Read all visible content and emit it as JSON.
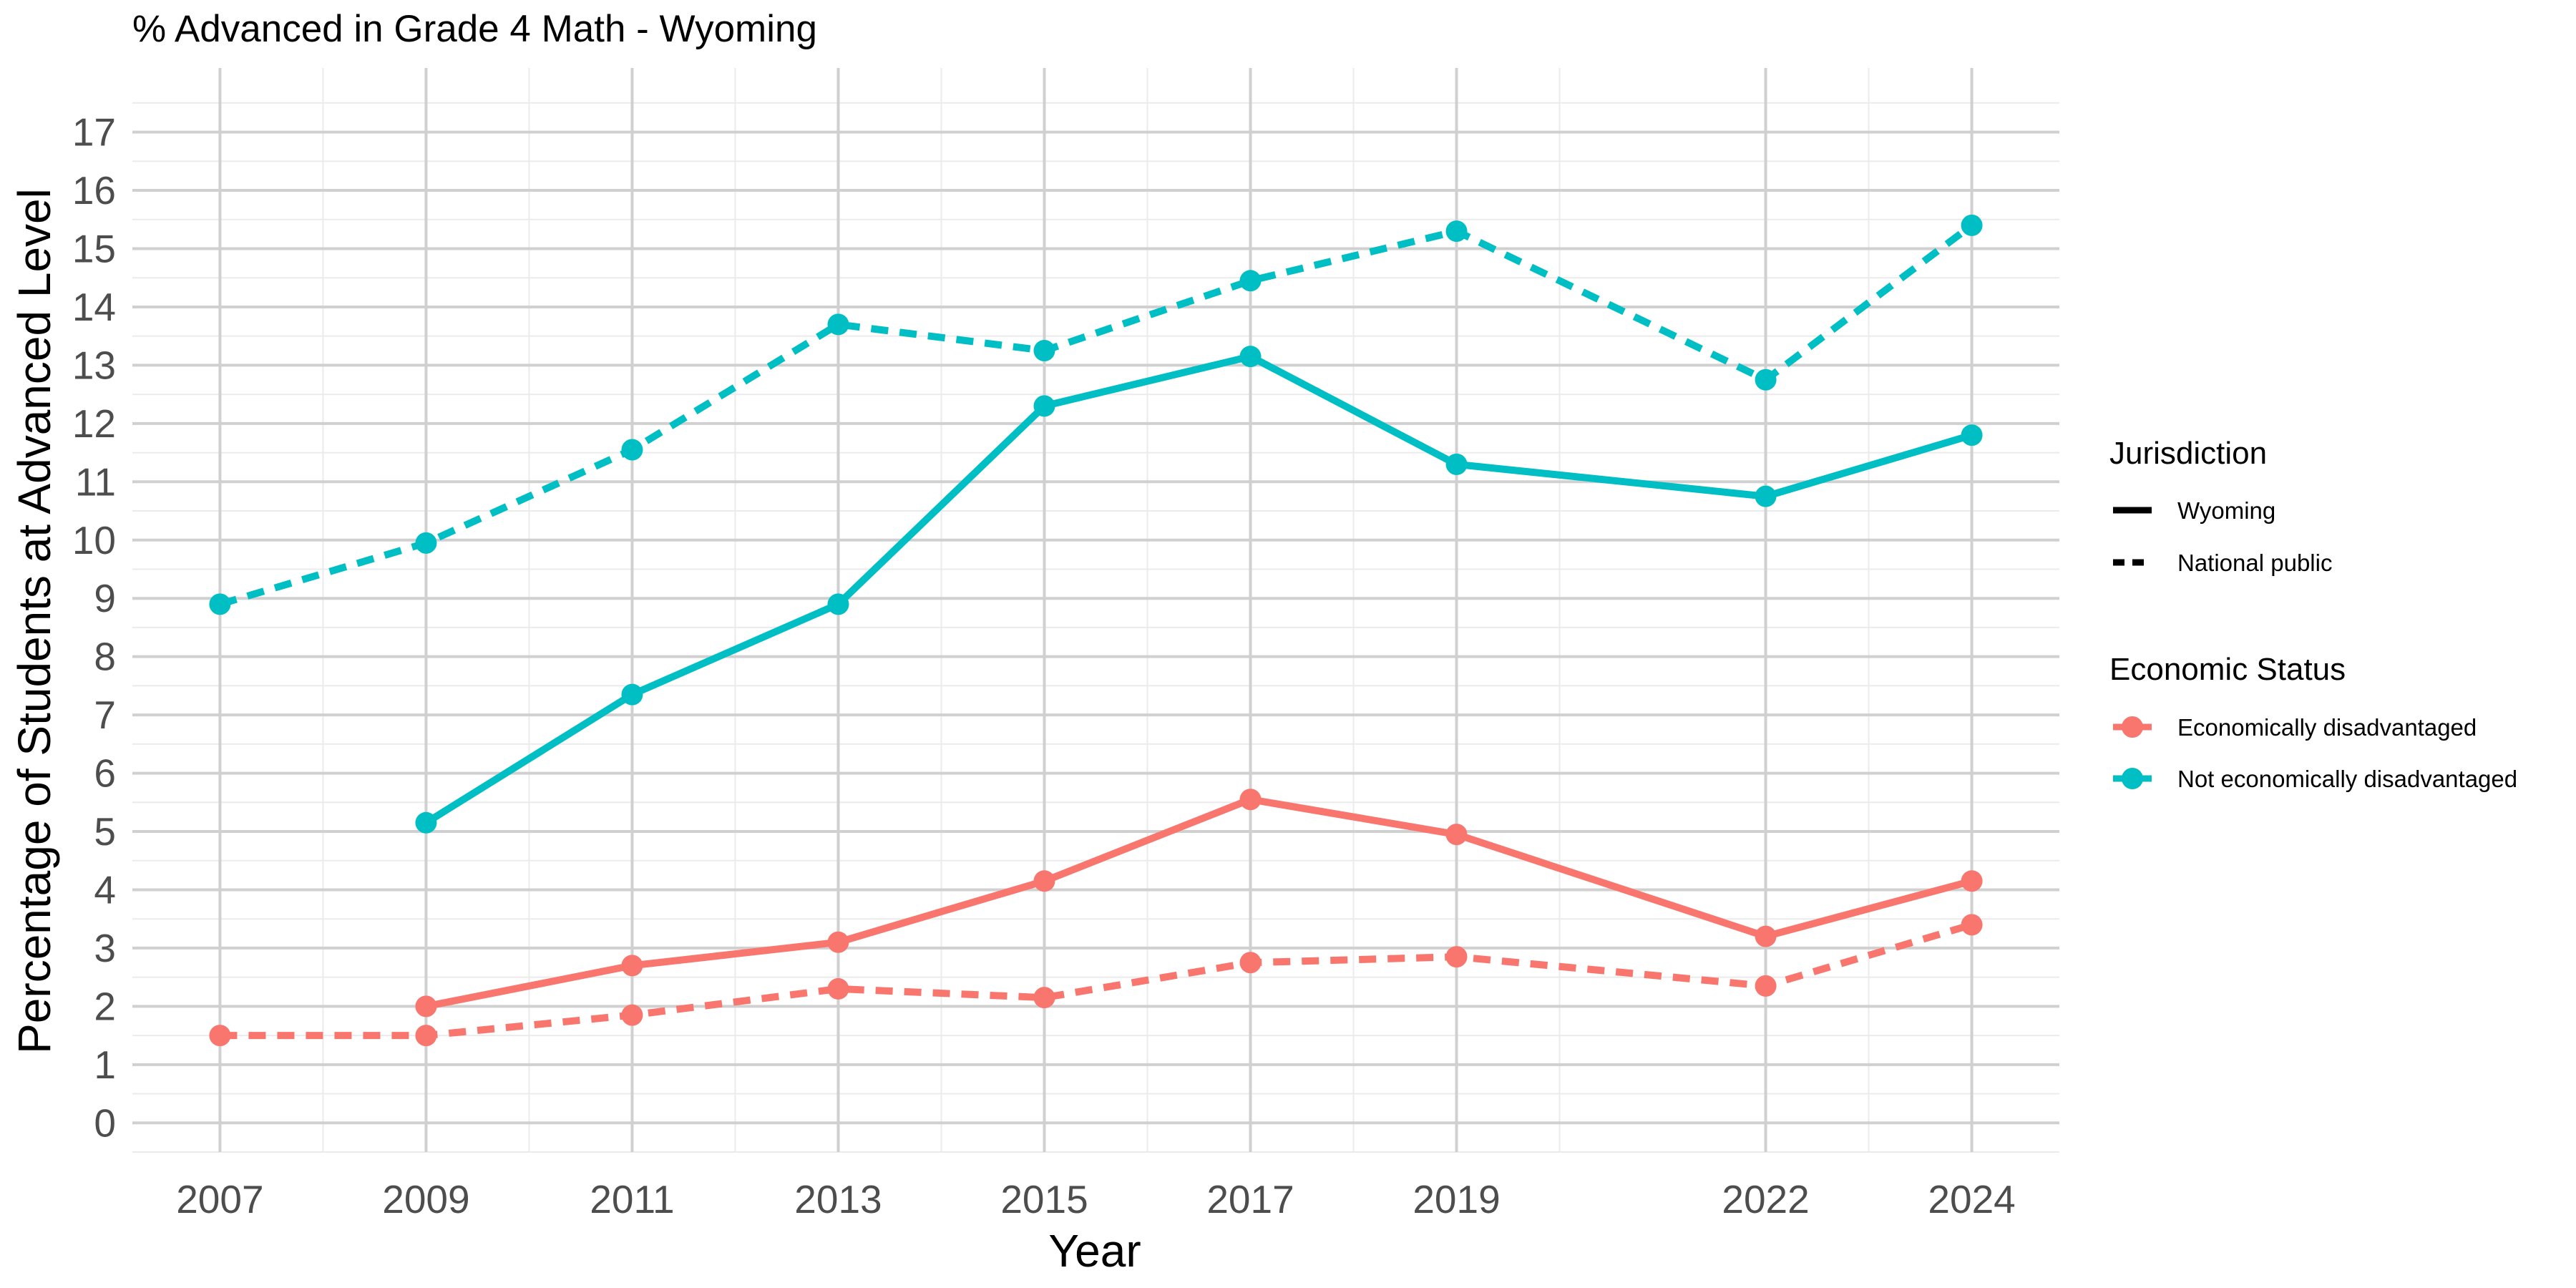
{
  "chart_data": {
    "type": "line",
    "title": "% Advanced in Grade 4 Math - Wyoming",
    "xlabel": "Year",
    "ylabel": "Percentage of Students at Advanced Level",
    "x_ticks": [
      "2007",
      "2009",
      "2011",
      "2013",
      "2015",
      "2017",
      "2019",
      "2022",
      "2024"
    ],
    "y_ticks": [
      "0",
      "1",
      "2",
      "3",
      "4",
      "5",
      "6",
      "7",
      "8",
      "9",
      "10",
      "11",
      "12",
      "13",
      "14",
      "15",
      "16",
      "17"
    ],
    "xlim": [
      2006.15,
      2024.85
    ],
    "ylim": [
      -0.5,
      18.1
    ],
    "grid": true,
    "legends": {
      "jurisdiction": {
        "title": "Jurisdiction",
        "items": [
          {
            "label": "Wyoming",
            "linestyle": "solid"
          },
          {
            "label": "National public",
            "linestyle": "dashed"
          }
        ]
      },
      "economic_status": {
        "title": "Economic Status",
        "items": [
          {
            "label": "Economically disadvantaged",
            "color": "#F8766D"
          },
          {
            "label": "Not economically disadvantaged",
            "color": "#00BFC4"
          }
        ]
      }
    },
    "series": [
      {
        "name": "Not economically disadvantaged - National public",
        "jurisdiction": "National public",
        "status": "Not economically disadvantaged",
        "color": "#00BFC4",
        "dashed": true,
        "x": [
          2007,
          2009,
          2011,
          2013,
          2015,
          2017,
          2019,
          2022,
          2024
        ],
        "values": [
          8.9,
          9.95,
          11.55,
          13.7,
          13.25,
          14.45,
          15.3,
          12.75,
          15.4
        ]
      },
      {
        "name": "Not economically disadvantaged - Wyoming",
        "jurisdiction": "Wyoming",
        "status": "Not economically disadvantaged",
        "color": "#00BFC4",
        "dashed": false,
        "x": [
          2009,
          2011,
          2013,
          2015,
          2017,
          2019,
          2022,
          2024
        ],
        "values": [
          5.15,
          7.35,
          8.9,
          12.3,
          13.15,
          11.3,
          10.75,
          11.8
        ]
      },
      {
        "name": "Economically disadvantaged - Wyoming",
        "jurisdiction": "Wyoming",
        "status": "Economically disadvantaged",
        "color": "#F8766D",
        "dashed": false,
        "x": [
          2009,
          2011,
          2013,
          2015,
          2017,
          2019,
          2022,
          2024
        ],
        "values": [
          2.0,
          2.7,
          3.1,
          4.15,
          5.55,
          4.95,
          3.2,
          4.15
        ]
      },
      {
        "name": "Economically disadvantaged - National public",
        "jurisdiction": "National public",
        "status": "Economically disadvantaged",
        "color": "#F8766D",
        "dashed": true,
        "x": [
          2007,
          2009,
          2011,
          2013,
          2015,
          2017,
          2019,
          2022,
          2024
        ],
        "values": [
          1.5,
          1.5,
          1.85,
          2.3,
          2.15,
          2.75,
          2.85,
          2.35,
          3.4
        ]
      }
    ]
  }
}
